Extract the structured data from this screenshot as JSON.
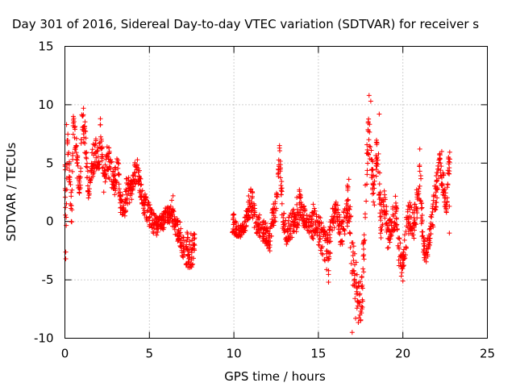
{
  "chart_data": {
    "type": "scatter",
    "title": "Day 301 of 2016, Sidereal Day-to-day VTEC variation (SDTVAR) for receiver s",
    "xlabel": "GPS time / hours",
    "ylabel": "SDTVAR / TECUs",
    "xlim": [
      0,
      25
    ],
    "ylim": [
      -10,
      15
    ],
    "xticks": [
      "0",
      "5",
      "10",
      "15",
      "20",
      "25"
    ],
    "yticks": [
      "-10",
      "-5",
      "0",
      "5",
      "10",
      "15"
    ],
    "grid": true,
    "marker": "+",
    "color": "#ff0000",
    "series": [
      {
        "name": "SDTVAR",
        "envelope": [
          [
            0.0,
            6.5,
            1.5
          ],
          [
            0.05,
            -2.5,
            1.0
          ],
          [
            0.15,
            7.5,
            1.0
          ],
          [
            0.3,
            3.0,
            1.5
          ],
          [
            0.4,
            0.5,
            1.0
          ],
          [
            0.5,
            8.5,
            0.8
          ],
          [
            0.7,
            5.5,
            1.5
          ],
          [
            0.9,
            2.5,
            1.0
          ],
          [
            1.0,
            9.0,
            0.8
          ],
          [
            1.2,
            7.0,
            1.5
          ],
          [
            1.4,
            2.5,
            0.8
          ],
          [
            1.6,
            5.0,
            1.5
          ],
          [
            1.8,
            6.0,
            1.5
          ],
          [
            2.0,
            4.5,
            1.5
          ],
          [
            2.1,
            7.5,
            1.0
          ],
          [
            2.3,
            3.5,
            1.0
          ],
          [
            2.5,
            5.5,
            1.5
          ],
          [
            2.7,
            4.5,
            1.5
          ],
          [
            2.9,
            3.0,
            1.0
          ],
          [
            3.1,
            4.5,
            1.5
          ],
          [
            3.3,
            2.0,
            1.5
          ],
          [
            3.5,
            1.0,
            1.0
          ],
          [
            3.7,
            3.0,
            1.5
          ],
          [
            3.9,
            2.5,
            1.0
          ],
          [
            4.1,
            4.0,
            1.0
          ],
          [
            4.3,
            4.5,
            1.0
          ],
          [
            4.5,
            2.5,
            1.0
          ],
          [
            4.7,
            1.5,
            1.0
          ],
          [
            5.0,
            0.5,
            1.0
          ],
          [
            5.2,
            0.0,
            1.0
          ],
          [
            5.5,
            -0.5,
            0.8
          ],
          [
            5.8,
            0.0,
            0.8
          ],
          [
            6.0,
            0.5,
            0.8
          ],
          [
            6.3,
            1.0,
            1.0
          ],
          [
            6.5,
            -0.5,
            1.0
          ],
          [
            6.8,
            -1.0,
            1.0
          ],
          [
            7.0,
            -2.0,
            1.5
          ],
          [
            7.3,
            -2.5,
            1.5
          ],
          [
            7.6,
            -2.5,
            1.5
          ],
          [
            9.9,
            0.0,
            1.0
          ],
          [
            10.3,
            -1.0,
            0.5
          ],
          [
            10.6,
            -0.5,
            0.5
          ],
          [
            10.8,
            0.5,
            1.0
          ],
          [
            11.0,
            2.0,
            1.5
          ],
          [
            11.3,
            0.0,
            1.0
          ],
          [
            11.6,
            -0.5,
            1.0
          ],
          [
            11.9,
            -1.0,
            1.0
          ],
          [
            12.1,
            -2.0,
            1.0
          ],
          [
            12.3,
            0.5,
            1.0
          ],
          [
            12.5,
            1.0,
            1.0
          ],
          [
            12.7,
            5.5,
            1.0
          ],
          [
            12.9,
            0.0,
            1.5
          ],
          [
            13.1,
            -1.0,
            1.0
          ],
          [
            13.3,
            -0.5,
            1.0
          ],
          [
            13.6,
            0.0,
            1.5
          ],
          [
            13.9,
            1.5,
            1.5
          ],
          [
            14.1,
            0.5,
            1.0
          ],
          [
            14.4,
            -0.5,
            1.0
          ],
          [
            14.7,
            0.0,
            1.5
          ],
          [
            14.9,
            -0.5,
            1.0
          ],
          [
            15.1,
            -1.0,
            1.5
          ],
          [
            15.3,
            -1.5,
            1.5
          ],
          [
            15.6,
            -3.0,
            2.0
          ],
          [
            15.8,
            0.0,
            1.0
          ],
          [
            16.1,
            1.0,
            1.0
          ],
          [
            16.3,
            -1.0,
            1.0
          ],
          [
            16.5,
            -0.5,
            1.5
          ],
          [
            16.8,
            2.0,
            2.0
          ],
          [
            17.0,
            -3.0,
            2.0
          ],
          [
            17.2,
            -5.0,
            2.5
          ],
          [
            17.4,
            -7.0,
            2.0
          ],
          [
            17.6,
            -6.0,
            2.0
          ],
          [
            17.8,
            3.0,
            2.0
          ],
          [
            18.0,
            8.0,
            2.0
          ],
          [
            18.3,
            2.0,
            1.5
          ],
          [
            18.5,
            7.0,
            2.0
          ],
          [
            18.7,
            0.0,
            2.0
          ],
          [
            18.9,
            2.0,
            1.5
          ],
          [
            19.1,
            -1.0,
            1.5
          ],
          [
            19.4,
            0.0,
            1.5
          ],
          [
            19.6,
            1.0,
            1.5
          ],
          [
            19.8,
            -3.0,
            1.5
          ],
          [
            20.0,
            -4.0,
            1.0
          ],
          [
            20.2,
            -1.0,
            1.5
          ],
          [
            20.4,
            0.5,
            1.5
          ],
          [
            20.6,
            -0.5,
            1.5
          ],
          [
            20.8,
            1.0,
            1.5
          ],
          [
            21.0,
            4.0,
            2.0
          ],
          [
            21.2,
            -2.0,
            1.0
          ],
          [
            21.4,
            -3.0,
            1.0
          ],
          [
            21.6,
            -1.0,
            1.0
          ],
          [
            21.8,
            1.0,
            1.5
          ],
          [
            22.0,
            3.0,
            1.5
          ],
          [
            22.2,
            5.0,
            1.0
          ],
          [
            22.4,
            3.0,
            1.5
          ],
          [
            22.6,
            1.0,
            0.5
          ],
          [
            22.7,
            5.0,
            1.0
          ]
        ],
        "outliers": [
          [
            0.05,
            -3.2
          ],
          [
            0.1,
            8.3
          ],
          [
            0.5,
            9.0
          ],
          [
            1.1,
            9.7
          ],
          [
            2.1,
            8.8
          ],
          [
            6.4,
            2.2
          ],
          [
            7.5,
            -3.9
          ],
          [
            12.7,
            6.5
          ],
          [
            15.6,
            -5.2
          ],
          [
            17.0,
            -9.5
          ],
          [
            17.2,
            -8.3
          ],
          [
            17.5,
            -8.5
          ],
          [
            18.0,
            10.8
          ],
          [
            18.1,
            10.3
          ],
          [
            18.6,
            9.2
          ],
          [
            20.0,
            -5.1
          ],
          [
            21.0,
            6.2
          ],
          [
            22.3,
            6.0
          ],
          [
            22.7,
            5.5
          ],
          [
            22.75,
            -1.0
          ],
          [
            22.75,
            1.3
          ]
        ]
      }
    ]
  }
}
